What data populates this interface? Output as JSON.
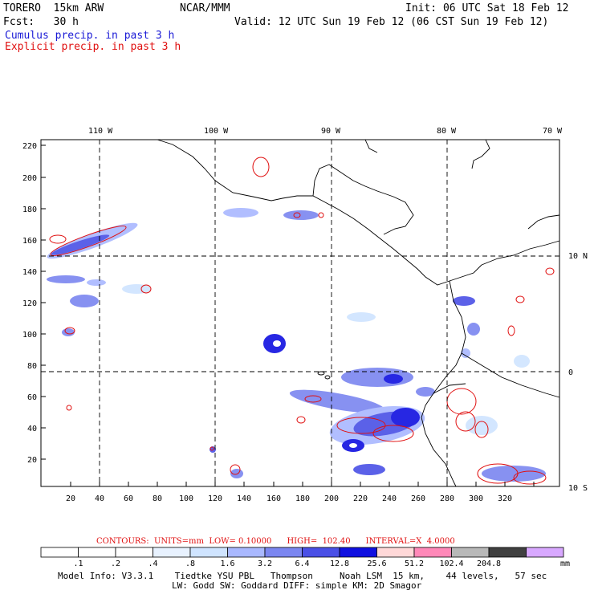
{
  "header": {
    "model": "TORERO  15km ARW",
    "org": "NCAR/MMM",
    "init": "Init: 06 UTC Sat 18 Feb 12",
    "fcst": "Fcst:   30 h",
    "valid": "Valid: 12 UTC Sun 19 Feb 12 (06 CST Sun 19 Feb 12)",
    "field1": "Cumulus precip. in past 3 h",
    "field2": "Explicit precip. in past 3 h"
  },
  "axes": {
    "top_lon": [
      "110 W",
      "100 W",
      "90 W",
      "80 W",
      "70 W"
    ],
    "right_lat": [
      "10 N",
      "0",
      "10 S"
    ],
    "x_ticks": [
      "20",
      "40",
      "60",
      "80",
      "100",
      "120",
      "140",
      "160",
      "180",
      "200",
      "220",
      "240",
      "260",
      "280",
      "300",
      "320"
    ],
    "y_ticks": [
      "220",
      "200",
      "180",
      "160",
      "140",
      "120",
      "100",
      "80",
      "60",
      "40",
      "20"
    ]
  },
  "contours": {
    "label": "CONTOURS:  UNITS=mm  LOW= 0.10000      HIGH=  102.40      INTERVAL=X  4.0000"
  },
  "colorbar": {
    "levels": [
      ".1",
      ".2",
      ".4",
      ".8",
      "1.6",
      "3.2",
      "6.4",
      "12.8",
      "25.6",
      "51.2",
      "102.4",
      "204.8"
    ],
    "unit": "mm",
    "colors": [
      "#ffffff",
      "#ffffff",
      "#ffffff",
      "#e8f2ff",
      "#cfe4ff",
      "#a9b8ff",
      "#7b86f0",
      "#4a50e6",
      "#1010e0",
      "#ffd8d8",
      "#ff88b8",
      "#b8b8b8",
      "#404040",
      "#d8a8ff"
    ]
  },
  "footer": {
    "line1": "Model Info: V3.3.1    Tiedtke YSU PBL   Thompson     Noah LSM  15 km,    44 levels,   57 sec",
    "line2": "LW: Godd SW: Goddard DIFF: simple KM: 2D Smagor"
  }
}
